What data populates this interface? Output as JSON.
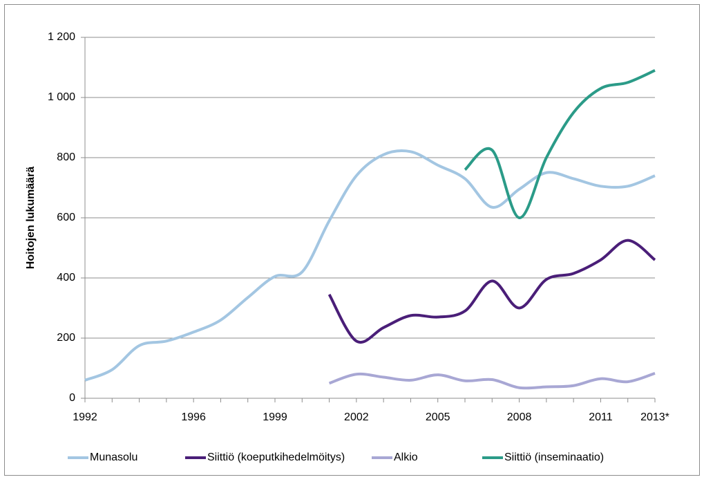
{
  "chart_data": {
    "type": "line",
    "y_label": "Hoitojen lukumäärä",
    "categories": [
      "1992",
      null,
      null,
      null,
      "1996",
      null,
      null,
      "1999",
      null,
      null,
      "2002",
      null,
      null,
      "2005",
      null,
      null,
      "2008",
      null,
      null,
      "2011",
      null,
      "2013*"
    ],
    "series": [
      {
        "name": "Munasolu",
        "color": "#a3c6e2",
        "values": [
          60,
          95,
          175,
          190,
          220,
          260,
          335,
          405,
          420,
          590,
          740,
          810,
          820,
          775,
          730,
          635,
          695,
          750,
          730,
          705,
          705,
          740
        ]
      },
      {
        "name": "Siittiö (koeputkihedelmöitys)",
        "color": "#4a1e78",
        "values": [
          null,
          null,
          null,
          null,
          null,
          null,
          null,
          null,
          null,
          345,
          190,
          235,
          275,
          270,
          290,
          390,
          300,
          395,
          415,
          460,
          525,
          460
        ]
      },
      {
        "name": "Alkio",
        "color": "#a8a7d4",
        "values": [
          null,
          null,
          null,
          null,
          null,
          null,
          null,
          null,
          null,
          50,
          80,
          70,
          60,
          78,
          58,
          62,
          35,
          38,
          42,
          65,
          55,
          83
        ]
      },
      {
        "name": "Siittiö (inseminaatio)",
        "color": "#2b9b88",
        "values": [
          null,
          null,
          null,
          null,
          null,
          null,
          null,
          null,
          null,
          null,
          null,
          null,
          null,
          null,
          760,
          825,
          600,
          800,
          950,
          1030,
          1050,
          1090
        ]
      }
    ],
    "ylim": [
      0,
      1200
    ],
    "yticks": [
      0,
      200,
      400,
      600,
      800,
      {
        "value": 1000,
        "label": "1 000"
      },
      {
        "value": 1200,
        "label": "1 200"
      }
    ],
    "grid": true,
    "legend": "bottom"
  }
}
